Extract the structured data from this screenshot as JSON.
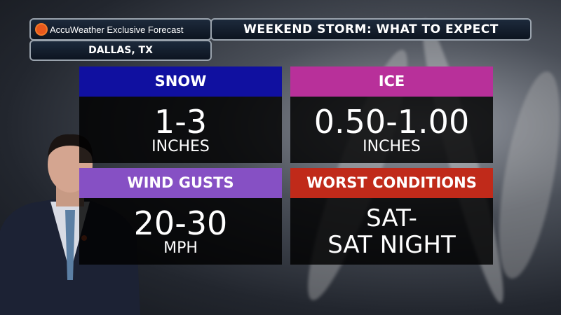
{
  "header": {
    "brand": "AccuWeather Exclusive Forecast",
    "title": "WEEKEND STORM: WHAT TO EXPECT",
    "location": "DALLAS, TX"
  },
  "panels": [
    {
      "label": "SNOW",
      "value": "1-3",
      "unit": "INCHES",
      "color": "#1010a0"
    },
    {
      "label": "ICE",
      "value": "0.50-1.00",
      "unit": "INCHES",
      "color": "#b8309a"
    },
    {
      "label": "WIND GUSTS",
      "value": "20-30",
      "unit": "MPH",
      "color": "#8650c4"
    },
    {
      "label": "WORST CONDITIONS",
      "line1": "SAT-",
      "line2": "SAT NIGHT",
      "color": "#c02a1a"
    }
  ]
}
